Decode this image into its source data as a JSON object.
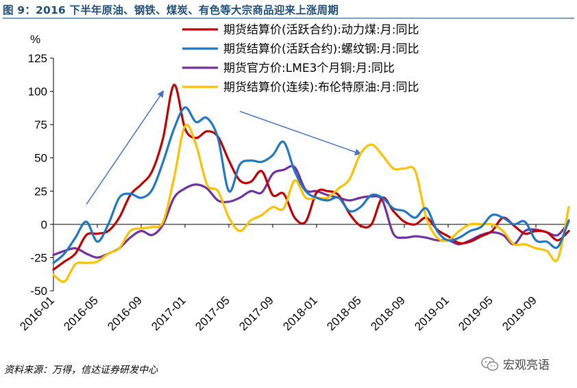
{
  "title": "图 9：2016 下半年原油、钢铁、煤炭、有色等大宗商品迎来上涨周期",
  "source": "资料来源：万得，信达证券研发中心",
  "watermark": {
    "text": "宏观亮语",
    "icon": "wechat-icon"
  },
  "chart_data": {
    "type": "line",
    "title": "",
    "xlabel": "",
    "ylabel": "%",
    "ylim": [
      -50,
      125
    ],
    "yticks": [
      -50,
      -25,
      0,
      25,
      50,
      75,
      100,
      125
    ],
    "x_tick_labels": [
      "2016-01",
      "2016-05",
      "2016-09",
      "2017-01",
      "2017-05",
      "2017-09",
      "2018-01",
      "2018-05",
      "2018-09",
      "2019-01",
      "2019-05",
      "2019-09"
    ],
    "x_start": "2016-01",
    "x_end": "2019-12",
    "grid": false,
    "legend_position": "top",
    "annotations": [
      {
        "type": "arrow",
        "direction": "up",
        "from": [
          "2016-04",
          15
        ],
        "to": [
          "2016-11",
          100
        ],
        "color": "#4472c4"
      },
      {
        "type": "arrow",
        "direction": "down",
        "from": [
          "2017-06",
          85
        ],
        "to": [
          "2018-05",
          53
        ],
        "color": "#4472c4"
      }
    ],
    "series": [
      {
        "name": "期货结算价(活跃合约):动力煤:月:同比",
        "color": "#c00000",
        "points": [
          [
            "2016-01-01",
            -34
          ],
          [
            "2016-02-01",
            -28
          ],
          [
            "2016-03-01",
            -22
          ],
          [
            "2016-04-01",
            -8
          ],
          [
            "2016-05-01",
            -7
          ],
          [
            "2016-06-01",
            -5
          ],
          [
            "2016-07-01",
            5
          ],
          [
            "2016-08-01",
            22
          ],
          [
            "2016-09-01",
            30
          ],
          [
            "2016-10-01",
            40
          ],
          [
            "2016-11-01",
            65
          ],
          [
            "2016-12-01",
            105
          ],
          [
            "2017-01-01",
            72
          ],
          [
            "2017-02-01",
            65
          ],
          [
            "2017-03-01",
            70
          ],
          [
            "2017-04-01",
            66
          ],
          [
            "2017-05-01",
            48
          ],
          [
            "2017-06-01",
            33
          ],
          [
            "2017-07-01",
            32
          ],
          [
            "2017-08-01",
            40
          ],
          [
            "2017-09-01",
            22
          ],
          [
            "2017-10-01",
            23
          ],
          [
            "2017-11-01",
            5
          ],
          [
            "2017-12-01",
            2
          ],
          [
            "2018-01-01",
            24
          ],
          [
            "2018-02-01",
            25
          ],
          [
            "2018-03-01",
            22
          ],
          [
            "2018-04-01",
            8
          ],
          [
            "2018-05-01",
            -1
          ],
          [
            "2018-06-01",
            0
          ],
          [
            "2018-07-01",
            20
          ],
          [
            "2018-08-01",
            10
          ],
          [
            "2018-09-01",
            2
          ],
          [
            "2018-10-01",
            0
          ],
          [
            "2018-11-01",
            5
          ],
          [
            "2018-12-01",
            -4
          ],
          [
            "2019-01-01",
            -9
          ],
          [
            "2019-02-01",
            -14
          ],
          [
            "2019-03-01",
            -13
          ],
          [
            "2019-04-01",
            -9
          ],
          [
            "2019-05-01",
            -5
          ],
          [
            "2019-06-01",
            5
          ],
          [
            "2019-07-01",
            -1
          ],
          [
            "2019-08-01",
            -7
          ],
          [
            "2019-09-01",
            -5
          ],
          [
            "2019-10-01",
            -6
          ],
          [
            "2019-11-01",
            -12
          ],
          [
            "2019-12-01",
            -5
          ]
        ]
      },
      {
        "name": "期货结算价(活跃合约):螺纹钢:月:同比",
        "color": "#1f77c4",
        "points": [
          [
            "2016-01-01",
            -29
          ],
          [
            "2016-02-01",
            -22
          ],
          [
            "2016-03-01",
            -10
          ],
          [
            "2016-04-01",
            2
          ],
          [
            "2016-05-01",
            -13
          ],
          [
            "2016-06-01",
            0
          ],
          [
            "2016-07-01",
            20
          ],
          [
            "2016-08-01",
            23
          ],
          [
            "2016-09-01",
            20
          ],
          [
            "2016-10-01",
            26
          ],
          [
            "2016-11-01",
            47
          ],
          [
            "2016-12-01",
            72
          ],
          [
            "2017-01-01",
            88
          ],
          [
            "2017-02-01",
            77
          ],
          [
            "2017-03-01",
            80
          ],
          [
            "2017-04-01",
            65
          ],
          [
            "2017-05-01",
            25
          ],
          [
            "2017-06-01",
            45
          ],
          [
            "2017-07-01",
            48
          ],
          [
            "2017-08-01",
            47
          ],
          [
            "2017-09-01",
            52
          ],
          [
            "2017-10-01",
            62
          ],
          [
            "2017-11-01",
            40
          ],
          [
            "2017-12-01",
            25
          ],
          [
            "2018-01-01",
            20
          ],
          [
            "2018-02-01",
            18
          ],
          [
            "2018-03-01",
            20
          ],
          [
            "2018-04-01",
            10
          ],
          [
            "2018-05-01",
            13
          ],
          [
            "2018-06-01",
            22
          ],
          [
            "2018-07-01",
            20
          ],
          [
            "2018-08-01",
            12
          ],
          [
            "2018-09-01",
            10
          ],
          [
            "2018-10-01",
            5
          ],
          [
            "2018-11-01",
            12
          ],
          [
            "2018-12-01",
            -5
          ],
          [
            "2019-01-01",
            -12
          ],
          [
            "2019-02-01",
            -10
          ],
          [
            "2019-03-01",
            -5
          ],
          [
            "2019-04-01",
            -2
          ],
          [
            "2019-05-01",
            7
          ],
          [
            "2019-06-01",
            5
          ],
          [
            "2019-07-01",
            0
          ],
          [
            "2019-08-01",
            2
          ],
          [
            "2019-09-01",
            -12
          ],
          [
            "2019-10-01",
            -13
          ],
          [
            "2019-11-01",
            -17
          ],
          [
            "2019-12-01",
            3
          ]
        ]
      },
      {
        "name": "期货官方价:LME3个月铜:月:同比",
        "color": "#7030a0",
        "points": [
          [
            "2016-01-01",
            -23
          ],
          [
            "2016-02-01",
            -20
          ],
          [
            "2016-03-01",
            -18
          ],
          [
            "2016-04-01",
            -22
          ],
          [
            "2016-05-01",
            -25
          ],
          [
            "2016-06-01",
            -22
          ],
          [
            "2016-07-01",
            -18
          ],
          [
            "2016-08-01",
            -10
          ],
          [
            "2016-09-01",
            -5
          ],
          [
            "2016-10-01",
            -8
          ],
          [
            "2016-11-01",
            0
          ],
          [
            "2016-12-01",
            20
          ],
          [
            "2017-01-01",
            27
          ],
          [
            "2017-02-01",
            30
          ],
          [
            "2017-03-01",
            27
          ],
          [
            "2017-04-01",
            18
          ],
          [
            "2017-05-01",
            17
          ],
          [
            "2017-06-01",
            20
          ],
          [
            "2017-07-01",
            25
          ],
          [
            "2017-08-01",
            24
          ],
          [
            "2017-09-01",
            38
          ],
          [
            "2017-10-01",
            41
          ],
          [
            "2017-11-01",
            43
          ],
          [
            "2017-12-01",
            26
          ],
          [
            "2018-01-01",
            25
          ],
          [
            "2018-02-01",
            22
          ],
          [
            "2018-03-01",
            20
          ],
          [
            "2018-04-01",
            18
          ],
          [
            "2018-05-01",
            20
          ],
          [
            "2018-06-01",
            21
          ],
          [
            "2018-07-01",
            18
          ],
          [
            "2018-08-01",
            -7
          ],
          [
            "2018-09-01",
            -10
          ],
          [
            "2018-10-01",
            -9
          ],
          [
            "2018-11-01",
            -10
          ],
          [
            "2018-12-01",
            -12
          ],
          [
            "2019-01-01",
            -12
          ],
          [
            "2019-02-01",
            -15
          ],
          [
            "2019-03-01",
            -12
          ],
          [
            "2019-04-01",
            -8
          ],
          [
            "2019-05-01",
            -6
          ],
          [
            "2019-06-01",
            -8
          ],
          [
            "2019-07-01",
            -15
          ],
          [
            "2019-08-01",
            -5
          ],
          [
            "2019-09-01",
            -4
          ],
          [
            "2019-10-01",
            -6
          ],
          [
            "2019-11-01",
            -8
          ],
          [
            "2019-12-01",
            2
          ]
        ]
      },
      {
        "name": "期货结算价(连续):布伦特原油:月:同比",
        "color": "#ffc000",
        "points": [
          [
            "2016-01-01",
            -38
          ],
          [
            "2016-02-01",
            -43
          ],
          [
            "2016-03-01",
            -30
          ],
          [
            "2016-04-01",
            -29
          ],
          [
            "2016-05-01",
            -28
          ],
          [
            "2016-06-01",
            -22
          ],
          [
            "2016-07-01",
            -18
          ],
          [
            "2016-08-01",
            -5
          ],
          [
            "2016-09-01",
            -3
          ],
          [
            "2016-10-01",
            -2
          ],
          [
            "2016-11-01",
            2
          ],
          [
            "2016-12-01",
            35
          ],
          [
            "2017-01-01",
            74
          ],
          [
            "2017-02-01",
            60
          ],
          [
            "2017-03-01",
            30
          ],
          [
            "2017-04-01",
            25
          ],
          [
            "2017-05-01",
            5
          ],
          [
            "2017-06-01",
            -5
          ],
          [
            "2017-07-01",
            3
          ],
          [
            "2017-08-01",
            7
          ],
          [
            "2017-09-01",
            13
          ],
          [
            "2017-10-01",
            12
          ],
          [
            "2017-11-01",
            33
          ],
          [
            "2017-12-01",
            20
          ],
          [
            "2018-01-01",
            20
          ],
          [
            "2018-02-01",
            20
          ],
          [
            "2018-03-01",
            27
          ],
          [
            "2018-04-01",
            34
          ],
          [
            "2018-05-01",
            53
          ],
          [
            "2018-06-01",
            60
          ],
          [
            "2018-07-01",
            52
          ],
          [
            "2018-08-01",
            42
          ],
          [
            "2018-09-01",
            42
          ],
          [
            "2018-10-01",
            40
          ],
          [
            "2018-11-01",
            5
          ],
          [
            "2018-12-01",
            -10
          ],
          [
            "2019-01-01",
            -12
          ],
          [
            "2019-02-01",
            -5
          ],
          [
            "2019-03-01",
            0
          ],
          [
            "2019-04-01",
            0
          ],
          [
            "2019-05-01",
            0
          ],
          [
            "2019-06-01",
            -5
          ],
          [
            "2019-07-01",
            -15
          ],
          [
            "2019-08-01",
            -15
          ],
          [
            "2019-09-01",
            -18
          ],
          [
            "2019-10-01",
            -20
          ],
          [
            "2019-11-01",
            -26
          ],
          [
            "2019-12-01",
            13
          ]
        ]
      }
    ]
  }
}
